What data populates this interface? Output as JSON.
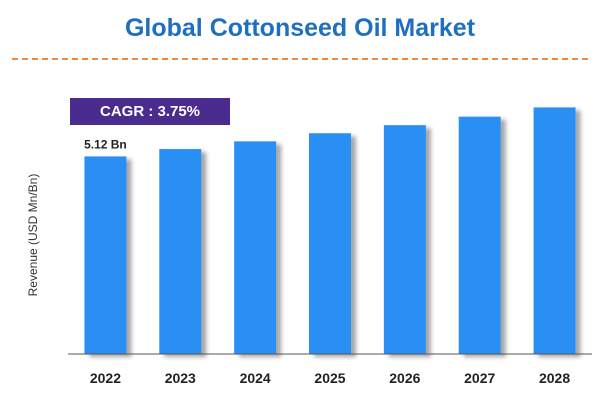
{
  "chart_data": {
    "type": "bar",
    "title": "Global Cottonseed Oil Market",
    "ylabel": "Revenue (USD Mn/Bn)",
    "xlabel": "",
    "categories": [
      "2022",
      "2023",
      "2024",
      "2025",
      "2026",
      "2027",
      "2028"
    ],
    "values": [
      5.12,
      5.31,
      5.51,
      5.72,
      5.93,
      6.15,
      6.39
    ],
    "ylim": [
      0,
      7.1
    ],
    "grid": false,
    "data_labels": [
      {
        "category": "2022",
        "text": "5.12 Bn"
      }
    ],
    "annotation": "CAGR : 3.75%",
    "bar_color": "#2b8ff5",
    "title_color": "#1f6fc1",
    "annotation_bg": "#4a2c8f",
    "divider_color": "#f08a3a"
  }
}
